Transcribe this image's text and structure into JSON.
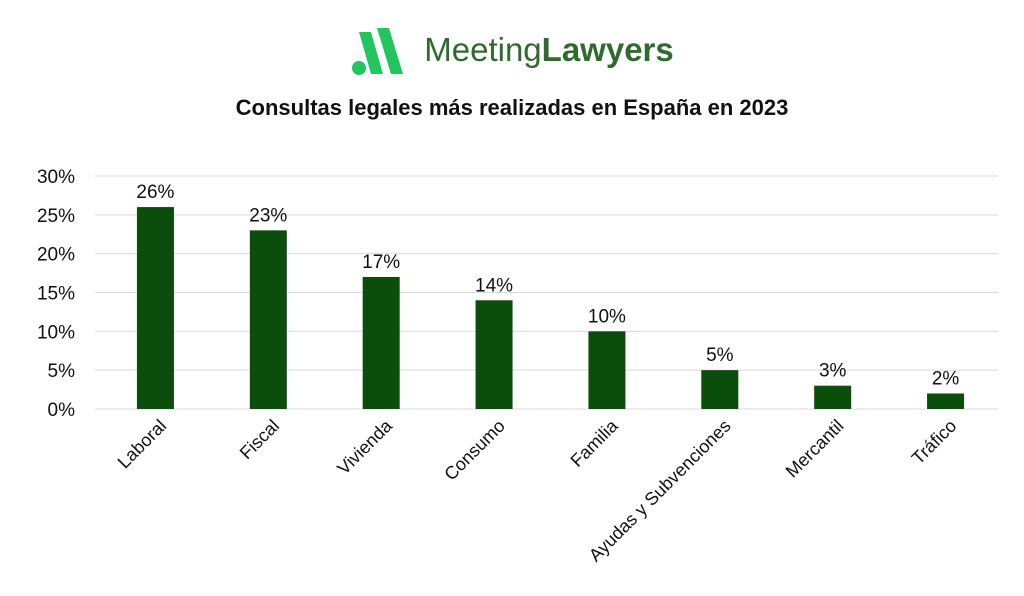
{
  "brand": {
    "name_light": "Meeting",
    "name_bold": "Lawyers",
    "logo_icon": "meetinglawyers-logo-icon",
    "color": "#2f6b2f",
    "accent": "#22c55e"
  },
  "chart_data": {
    "type": "bar",
    "title": "Consultas legales más realizadas en España en 2023",
    "categories": [
      "Laboral",
      "Fiscal",
      "Vivienda",
      "Consumo",
      "Familia",
      "Ayudas y Subvenciones",
      "Mercantil",
      "Tráfico"
    ],
    "values": [
      26,
      23,
      17,
      14,
      10,
      5,
      3,
      2
    ],
    "data_labels": [
      "26%",
      "23%",
      "17%",
      "14%",
      "10%",
      "5%",
      "3%",
      "2%"
    ],
    "yticks": [
      0,
      5,
      10,
      15,
      20,
      25,
      30
    ],
    "ytick_labels": [
      "0%",
      "5%",
      "10%",
      "15%",
      "20%",
      "25%",
      "30%"
    ],
    "ylim": [
      0,
      30
    ],
    "xlabel": "",
    "ylabel": "",
    "grid": true,
    "legend": "none",
    "bar_color": "#0b4d0b",
    "grid_color": "#d9d9d9"
  }
}
